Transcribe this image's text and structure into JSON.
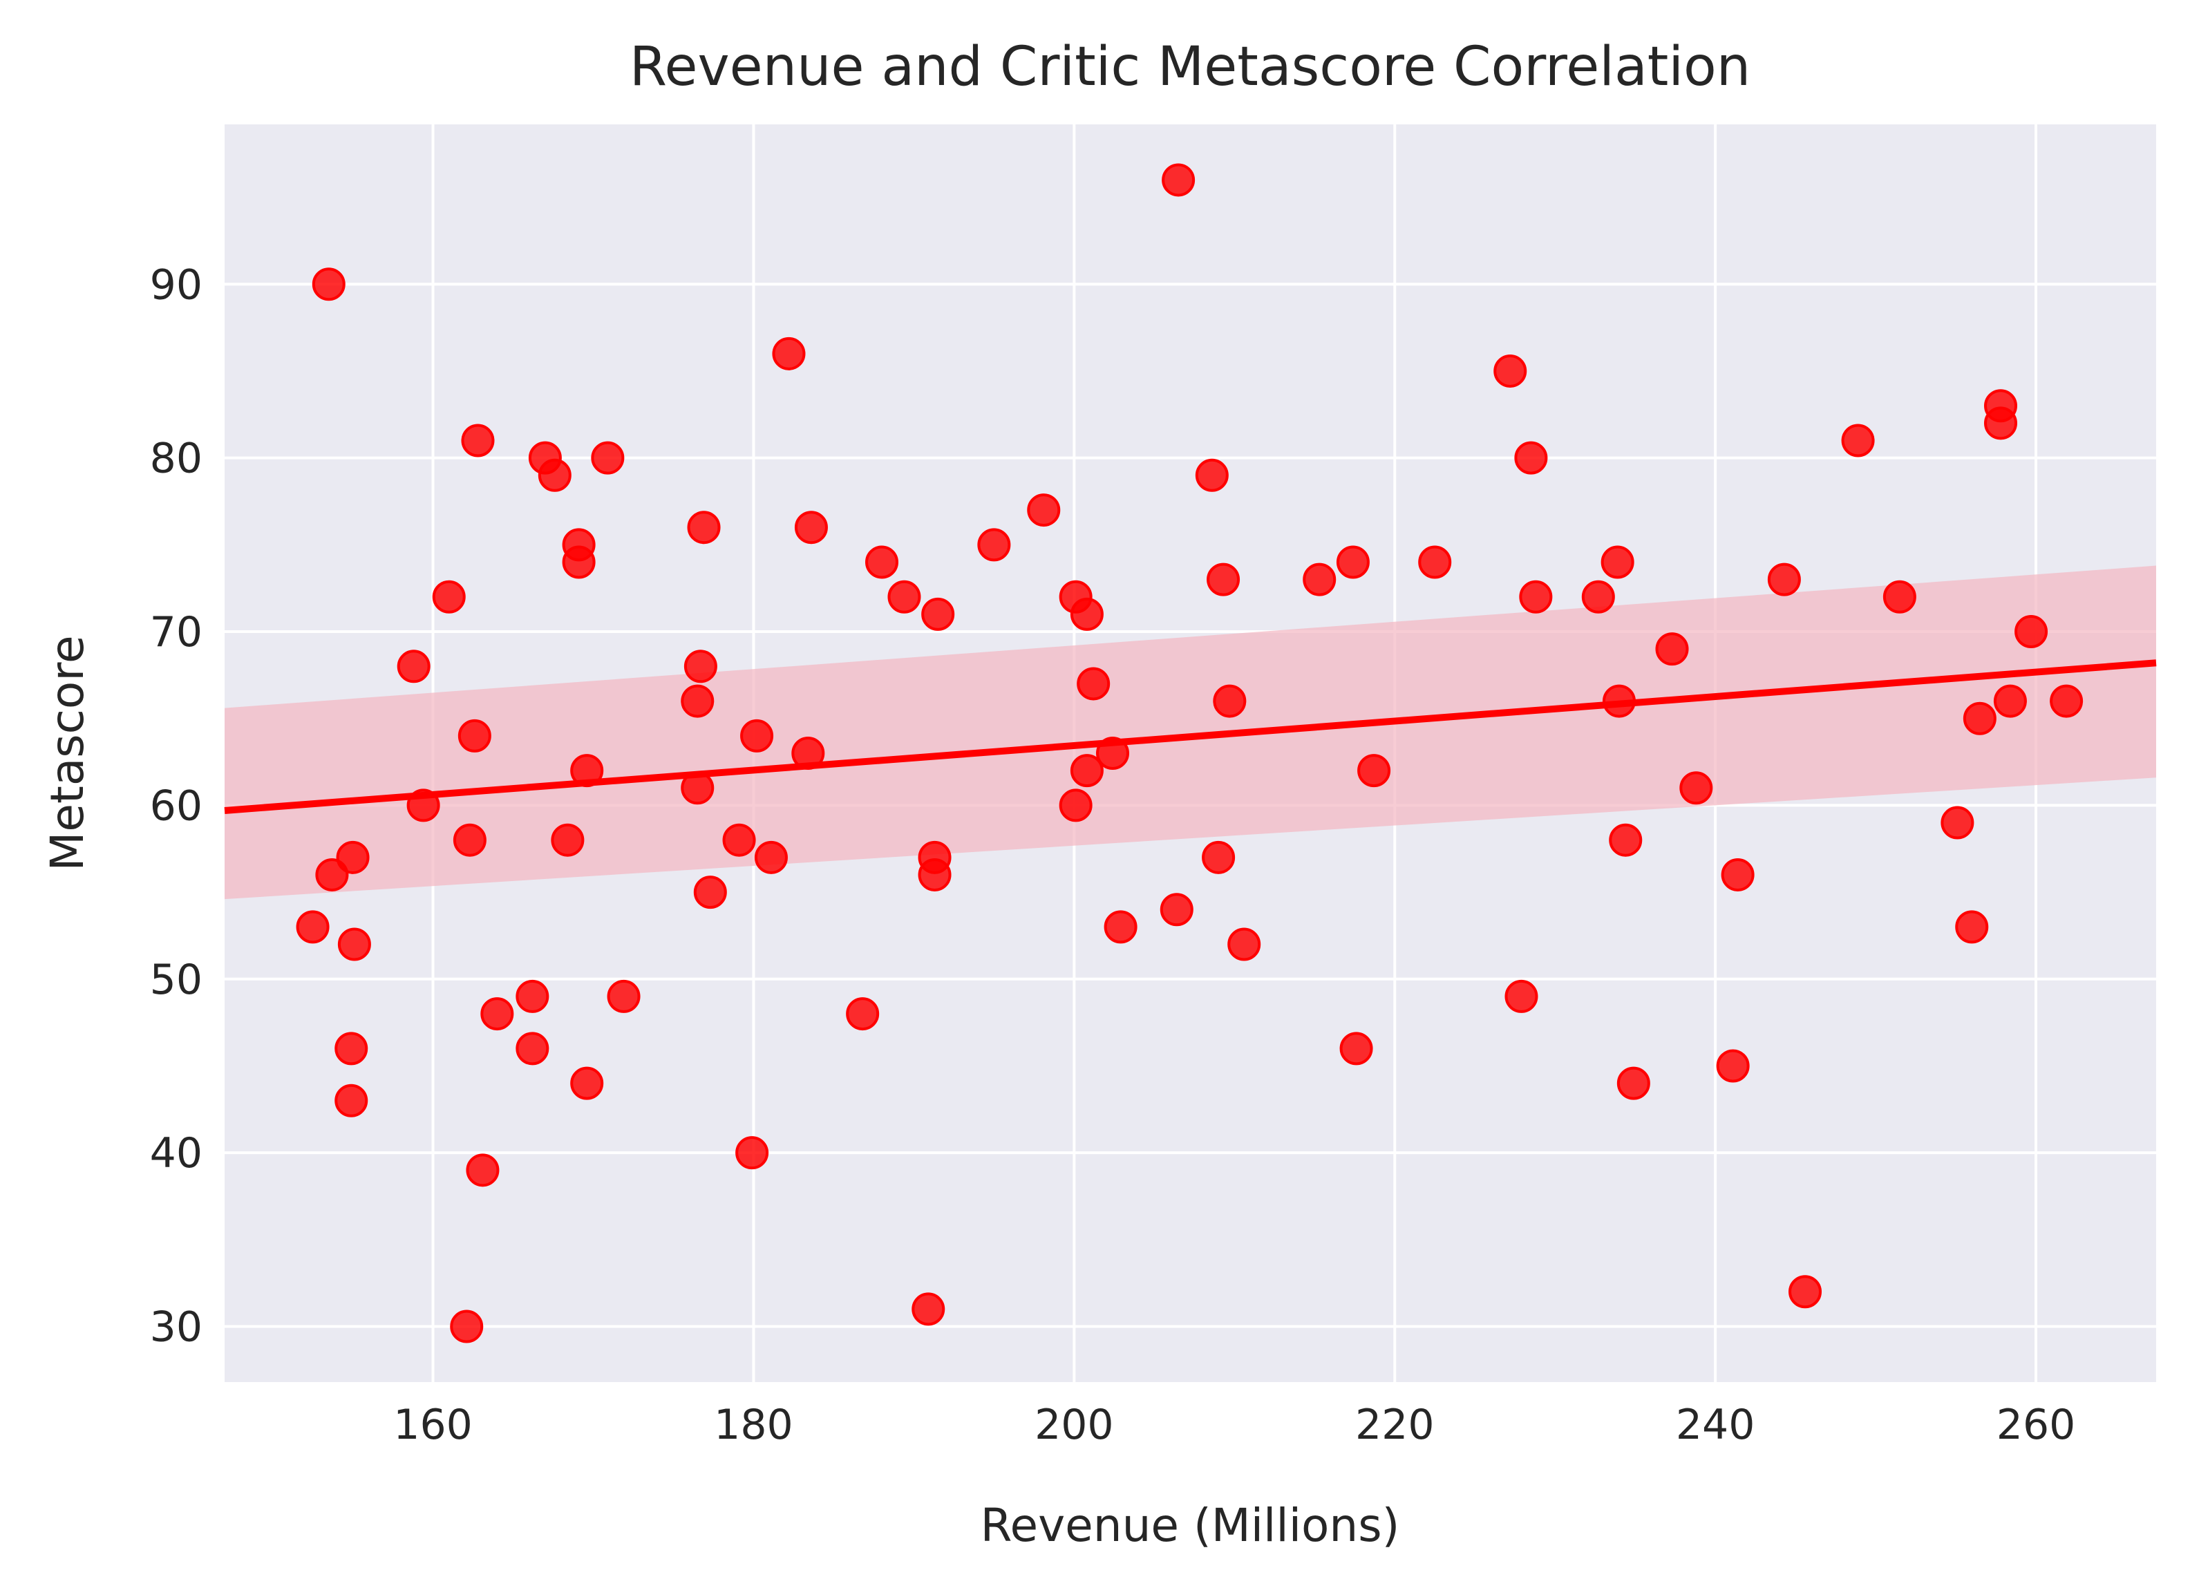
{
  "chart_data": {
    "type": "scatter",
    "title": "Revenue and Critic Metascore Correlation",
    "xlabel": "Revenue (Millions)",
    "ylabel": "Metascore",
    "xlim": [
      147,
      267.5
    ],
    "ylim": [
      26.8,
      99.2
    ],
    "xticks": [
      160,
      180,
      200,
      220,
      240,
      260
    ],
    "yticks": [
      30,
      40,
      50,
      60,
      70,
      80,
      90
    ],
    "grid": true,
    "background_color": "#eaeaf2",
    "point_color": "#ff0000",
    "regression": {
      "x": [
        147,
        267.5
      ],
      "y": [
        59.7,
        68.2
      ],
      "band_upper": [
        65.6,
        73.8
      ],
      "band_lower": [
        54.6,
        61.6
      ],
      "band_color": "#f4b6c2"
    },
    "points": [
      {
        "x": 153.5,
        "y": 90
      },
      {
        "x": 152.5,
        "y": 53
      },
      {
        "x": 153.7,
        "y": 56
      },
      {
        "x": 155.0,
        "y": 57
      },
      {
        "x": 155.1,
        "y": 52
      },
      {
        "x": 154.9,
        "y": 46
      },
      {
        "x": 154.9,
        "y": 43
      },
      {
        "x": 158.8,
        "y": 68
      },
      {
        "x": 159.4,
        "y": 60
      },
      {
        "x": 161.0,
        "y": 72
      },
      {
        "x": 162.8,
        "y": 81
      },
      {
        "x": 162.6,
        "y": 64
      },
      {
        "x": 162.3,
        "y": 58
      },
      {
        "x": 163.1,
        "y": 39
      },
      {
        "x": 162.1,
        "y": 30
      },
      {
        "x": 164.0,
        "y": 48
      },
      {
        "x": 166.2,
        "y": 49
      },
      {
        "x": 166.2,
        "y": 46
      },
      {
        "x": 167.0,
        "y": 80
      },
      {
        "x": 167.6,
        "y": 79
      },
      {
        "x": 169.1,
        "y": 75
      },
      {
        "x": 169.1,
        "y": 74
      },
      {
        "x": 168.4,
        "y": 58
      },
      {
        "x": 169.6,
        "y": 62
      },
      {
        "x": 169.6,
        "y": 44
      },
      {
        "x": 170.9,
        "y": 80
      },
      {
        "x": 171.9,
        "y": 49
      },
      {
        "x": 176.7,
        "y": 68
      },
      {
        "x": 176.5,
        "y": 66
      },
      {
        "x": 176.5,
        "y": 61
      },
      {
        "x": 176.9,
        "y": 76
      },
      {
        "x": 177.3,
        "y": 55
      },
      {
        "x": 179.1,
        "y": 58
      },
      {
        "x": 180.2,
        "y": 64
      },
      {
        "x": 179.9,
        "y": 40
      },
      {
        "x": 181.1,
        "y": 57
      },
      {
        "x": 182.2,
        "y": 86
      },
      {
        "x": 183.6,
        "y": 76
      },
      {
        "x": 183.4,
        "y": 63
      },
      {
        "x": 186.8,
        "y": 48
      },
      {
        "x": 188.0,
        "y": 74
      },
      {
        "x": 189.4,
        "y": 72
      },
      {
        "x": 191.5,
        "y": 71
      },
      {
        "x": 191.3,
        "y": 57
      },
      {
        "x": 191.3,
        "y": 56
      },
      {
        "x": 190.9,
        "y": 31
      },
      {
        "x": 195.0,
        "y": 75
      },
      {
        "x": 198.1,
        "y": 77
      },
      {
        "x": 200.1,
        "y": 72
      },
      {
        "x": 200.8,
        "y": 71
      },
      {
        "x": 201.2,
        "y": 67
      },
      {
        "x": 200.8,
        "y": 62
      },
      {
        "x": 200.1,
        "y": 60
      },
      {
        "x": 202.4,
        "y": 63
      },
      {
        "x": 202.9,
        "y": 53
      },
      {
        "x": 206.5,
        "y": 96
      },
      {
        "x": 206.4,
        "y": 54
      },
      {
        "x": 208.6,
        "y": 79
      },
      {
        "x": 209.3,
        "y": 73
      },
      {
        "x": 209.7,
        "y": 66
      },
      {
        "x": 209.0,
        "y": 57
      },
      {
        "x": 210.6,
        "y": 52
      },
      {
        "x": 215.3,
        "y": 73
      },
      {
        "x": 217.4,
        "y": 74
      },
      {
        "x": 218.7,
        "y": 62
      },
      {
        "x": 217.6,
        "y": 46
      },
      {
        "x": 222.5,
        "y": 74
      },
      {
        "x": 227.2,
        "y": 85
      },
      {
        "x": 228.5,
        "y": 80
      },
      {
        "x": 228.8,
        "y": 72
      },
      {
        "x": 227.9,
        "y": 49
      },
      {
        "x": 232.7,
        "y": 72
      },
      {
        "x": 233.9,
        "y": 74
      },
      {
        "x": 234.0,
        "y": 66
      },
      {
        "x": 234.4,
        "y": 58
      },
      {
        "x": 234.9,
        "y": 44
      },
      {
        "x": 237.3,
        "y": 69
      },
      {
        "x": 238.8,
        "y": 61
      },
      {
        "x": 241.4,
        "y": 56
      },
      {
        "x": 241.1,
        "y": 45
      },
      {
        "x": 244.3,
        "y": 73
      },
      {
        "x": 245.6,
        "y": 32
      },
      {
        "x": 248.9,
        "y": 81
      },
      {
        "x": 251.5,
        "y": 72
      },
      {
        "x": 255.1,
        "y": 59
      },
      {
        "x": 256.5,
        "y": 65
      },
      {
        "x": 256.0,
        "y": 53
      },
      {
        "x": 257.8,
        "y": 83
      },
      {
        "x": 257.8,
        "y": 82
      },
      {
        "x": 258.4,
        "y": 66
      },
      {
        "x": 259.7,
        "y": 70
      },
      {
        "x": 261.9,
        "y": 66
      }
    ]
  }
}
